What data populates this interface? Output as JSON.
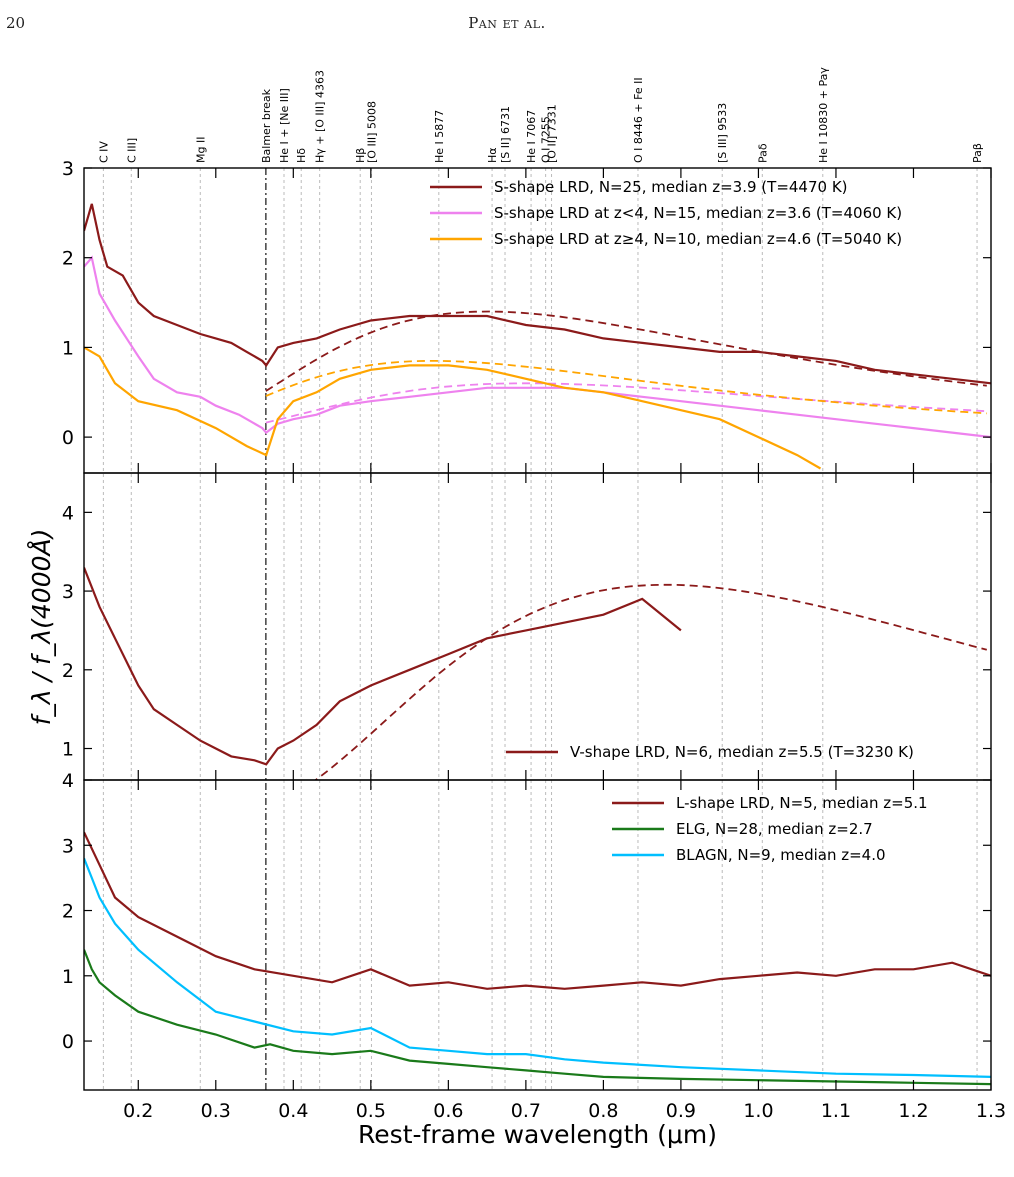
{
  "page": {
    "number": "20",
    "running_head": "Pan et al."
  },
  "chart_data": [
    {
      "type": "line",
      "panel": "S-shape",
      "ylim": [
        -0.4,
        3.0
      ],
      "yticks": [
        0,
        1,
        2,
        3
      ],
      "series": [
        {
          "name": "S-shape LRD, N=25, median z=3.9 (T=4470 K)",
          "color": "#8b1a1a",
          "points": [
            [
              0.13,
              2.3
            ],
            [
              0.14,
              2.6
            ],
            [
              0.15,
              2.2
            ],
            [
              0.16,
              1.9
            ],
            [
              0.18,
              1.8
            ],
            [
              0.2,
              1.5
            ],
            [
              0.22,
              1.35
            ],
            [
              0.25,
              1.25
            ],
            [
              0.28,
              1.15
            ],
            [
              0.3,
              1.1
            ],
            [
              0.32,
              1.05
            ],
            [
              0.34,
              0.95
            ],
            [
              0.36,
              0.85
            ],
            [
              0.365,
              0.8
            ],
            [
              0.38,
              1.0
            ],
            [
              0.4,
              1.05
            ],
            [
              0.43,
              1.1
            ],
            [
              0.46,
              1.2
            ],
            [
              0.5,
              1.3
            ],
            [
              0.55,
              1.35
            ],
            [
              0.6,
              1.35
            ],
            [
              0.65,
              1.35
            ],
            [
              0.7,
              1.25
            ],
            [
              0.75,
              1.2
            ],
            [
              0.8,
              1.1
            ],
            [
              0.85,
              1.05
            ],
            [
              0.9,
              1.0
            ],
            [
              0.95,
              0.95
            ],
            [
              1.0,
              0.95
            ],
            [
              1.05,
              0.9
            ],
            [
              1.1,
              0.85
            ],
            [
              1.15,
              0.75
            ],
            [
              1.2,
              0.7
            ],
            [
              1.25,
              0.65
            ],
            [
              1.3,
              0.6
            ]
          ],
          "fit": {
            "peak_um": 0.65,
            "peak_y": 1.4
          }
        },
        {
          "name": "S-shape LRD at z<4, N=15, median z=3.6 (T=4060 K)",
          "color": "#ee82ee",
          "points": [
            [
              0.13,
              1.9
            ],
            [
              0.14,
              2.0
            ],
            [
              0.15,
              1.6
            ],
            [
              0.17,
              1.3
            ],
            [
              0.2,
              0.9
            ],
            [
              0.22,
              0.65
            ],
            [
              0.25,
              0.5
            ],
            [
              0.28,
              0.45
            ],
            [
              0.3,
              0.35
            ],
            [
              0.33,
              0.25
            ],
            [
              0.36,
              0.1
            ],
            [
              0.365,
              0.05
            ],
            [
              0.38,
              0.15
            ],
            [
              0.4,
              0.2
            ],
            [
              0.43,
              0.25
            ],
            [
              0.46,
              0.35
            ],
            [
              0.5,
              0.4
            ],
            [
              0.55,
              0.45
            ],
            [
              0.6,
              0.5
            ],
            [
              0.65,
              0.55
            ],
            [
              0.7,
              0.55
            ],
            [
              0.75,
              0.55
            ],
            [
              0.8,
              0.5
            ],
            [
              0.85,
              0.45
            ],
            [
              0.9,
              0.4
            ],
            [
              0.95,
              0.35
            ],
            [
              1.0,
              0.3
            ],
            [
              1.05,
              0.25
            ],
            [
              1.1,
              0.2
            ],
            [
              1.15,
              0.15
            ],
            [
              1.2,
              0.1
            ],
            [
              1.25,
              0.05
            ],
            [
              1.3,
              0.0
            ]
          ],
          "fit": {
            "peak_um": 0.7,
            "peak_y": 0.6
          }
        },
        {
          "name": "S-shape LRD at z≥4, N=10, median z=4.6 (T=5040 K)",
          "color": "#ffa500",
          "points": [
            [
              0.13,
              1.0
            ],
            [
              0.15,
              0.9
            ],
            [
              0.17,
              0.6
            ],
            [
              0.2,
              0.4
            ],
            [
              0.25,
              0.3
            ],
            [
              0.3,
              0.1
            ],
            [
              0.34,
              -0.1
            ],
            [
              0.365,
              -0.2
            ],
            [
              0.38,
              0.2
            ],
            [
              0.4,
              0.4
            ],
            [
              0.43,
              0.5
            ],
            [
              0.46,
              0.65
            ],
            [
              0.5,
              0.75
            ],
            [
              0.55,
              0.8
            ],
            [
              0.6,
              0.8
            ],
            [
              0.65,
              0.75
            ],
            [
              0.7,
              0.65
            ],
            [
              0.75,
              0.55
            ],
            [
              0.8,
              0.5
            ],
            [
              0.85,
              0.4
            ],
            [
              0.9,
              0.3
            ],
            [
              0.95,
              0.2
            ],
            [
              1.0,
              0.0
            ],
            [
              1.05,
              -0.2
            ],
            [
              1.08,
              -0.35
            ]
          ],
          "fit": {
            "peak_um": 0.58,
            "peak_y": 0.85
          }
        }
      ]
    },
    {
      "type": "line",
      "panel": "V-shape",
      "ylim": [
        0.6,
        4.5
      ],
      "yticks": [
        1,
        2,
        3,
        4
      ],
      "series": [
        {
          "name": "V-shape LRD, N=6, median z=5.5 (T=3230 K)",
          "color": "#8b1a1a",
          "points": [
            [
              0.13,
              3.3
            ],
            [
              0.15,
              2.8
            ],
            [
              0.17,
              2.4
            ],
            [
              0.2,
              1.8
            ],
            [
              0.22,
              1.5
            ],
            [
              0.25,
              1.3
            ],
            [
              0.28,
              1.1
            ],
            [
              0.3,
              1.0
            ],
            [
              0.32,
              0.9
            ],
            [
              0.35,
              0.85
            ],
            [
              0.365,
              0.8
            ],
            [
              0.38,
              1.0
            ],
            [
              0.4,
              1.1
            ],
            [
              0.43,
              1.3
            ],
            [
              0.46,
              1.6
            ],
            [
              0.5,
              1.8
            ],
            [
              0.55,
              2.0
            ],
            [
              0.6,
              2.2
            ],
            [
              0.65,
              2.4
            ],
            [
              0.7,
              2.5
            ],
            [
              0.75,
              2.6
            ],
            [
              0.8,
              2.7
            ],
            [
              0.85,
              2.9
            ],
            [
              0.9,
              2.5
            ]
          ],
          "fit": {
            "peak_um": 0.88,
            "peak_y": 3.08
          }
        }
      ]
    },
    {
      "type": "line",
      "panel": "L-shape",
      "ylim": [
        -0.75,
        4.0
      ],
      "yticks": [
        0,
        1,
        2,
        3,
        4
      ],
      "series": [
        {
          "name": "L-shape LRD, N=5, median z=5.1",
          "color": "#8b1a1a",
          "points": [
            [
              0.13,
              3.2
            ],
            [
              0.15,
              2.7
            ],
            [
              0.17,
              2.2
            ],
            [
              0.2,
              1.9
            ],
            [
              0.25,
              1.6
            ],
            [
              0.3,
              1.3
            ],
            [
              0.35,
              1.1
            ],
            [
              0.4,
              1.0
            ],
            [
              0.45,
              0.9
            ],
            [
              0.5,
              1.1
            ],
            [
              0.55,
              0.85
            ],
            [
              0.6,
              0.9
            ],
            [
              0.65,
              0.8
            ],
            [
              0.7,
              0.85
            ],
            [
              0.75,
              0.8
            ],
            [
              0.8,
              0.85
            ],
            [
              0.85,
              0.9
            ],
            [
              0.9,
              0.85
            ],
            [
              0.95,
              0.95
            ],
            [
              1.0,
              1.0
            ],
            [
              1.05,
              1.05
            ],
            [
              1.1,
              1.0
            ],
            [
              1.15,
              1.1
            ],
            [
              1.2,
              1.1
            ],
            [
              1.25,
              1.2
            ],
            [
              1.3,
              1.0
            ]
          ]
        },
        {
          "name": "ELG, N=28, median z=2.7",
          "color": "#1a7a1a",
          "points": [
            [
              0.13,
              1.4
            ],
            [
              0.14,
              1.1
            ],
            [
              0.15,
              0.9
            ],
            [
              0.17,
              0.7
            ],
            [
              0.2,
              0.45
            ],
            [
              0.25,
              0.25
            ],
            [
              0.3,
              0.1
            ],
            [
              0.35,
              -0.1
            ],
            [
              0.37,
              -0.05
            ],
            [
              0.4,
              -0.15
            ],
            [
              0.45,
              -0.2
            ],
            [
              0.5,
              -0.15
            ],
            [
              0.55,
              -0.3
            ],
            [
              0.6,
              -0.35
            ],
            [
              0.65,
              -0.4
            ],
            [
              0.7,
              -0.45
            ],
            [
              0.75,
              -0.5
            ],
            [
              0.8,
              -0.55
            ],
            [
              0.9,
              -0.58
            ],
            [
              1.0,
              -0.6
            ],
            [
              1.1,
              -0.62
            ],
            [
              1.2,
              -0.64
            ],
            [
              1.3,
              -0.66
            ]
          ]
        },
        {
          "name": "BLAGN, N=9, median z=4.0",
          "color": "#00bfff",
          "points": [
            [
              0.13,
              2.8
            ],
            [
              0.14,
              2.5
            ],
            [
              0.15,
              2.2
            ],
            [
              0.17,
              1.8
            ],
            [
              0.2,
              1.4
            ],
            [
              0.25,
              0.9
            ],
            [
              0.3,
              0.45
            ],
            [
              0.35,
              0.3
            ],
            [
              0.4,
              0.15
            ],
            [
              0.45,
              0.1
            ],
            [
              0.5,
              0.2
            ],
            [
              0.55,
              -0.1
            ],
            [
              0.6,
              -0.15
            ],
            [
              0.65,
              -0.2
            ],
            [
              0.7,
              -0.2
            ],
            [
              0.75,
              -0.28
            ],
            [
              0.8,
              -0.33
            ],
            [
              0.9,
              -0.4
            ],
            [
              1.0,
              -0.45
            ],
            [
              1.1,
              -0.5
            ],
            [
              1.2,
              -0.52
            ],
            [
              1.3,
              -0.55
            ]
          ]
        }
      ]
    }
  ],
  "x_axis": {
    "label": "Rest-frame wavelength (μm)",
    "xlim": [
      0.13,
      1.3
    ],
    "ticks": [
      0.2,
      0.3,
      0.4,
      0.5,
      0.6,
      0.7,
      0.8,
      0.9,
      1.0,
      1.1,
      1.2,
      1.3
    ],
    "tick_labels": [
      "0.2",
      "0.3",
      "0.4",
      "0.5",
      "0.6",
      "0.7",
      "0.8",
      "0.9",
      "1.0",
      "1.1",
      "1.2",
      "1.3"
    ]
  },
  "y_axis": {
    "label": "f_λ / f_λ(4000Å)"
  },
  "spectral_lines": [
    {
      "label": "C IV",
      "um": 0.155
    },
    {
      "label": "C III]",
      "um": 0.191
    },
    {
      "label": "Mg II",
      "um": 0.28
    },
    {
      "label": "Balmer break",
      "um": 0.3646,
      "style": "dashdot"
    },
    {
      "label": "He I + [Ne III]",
      "um": 0.388
    },
    {
      "label": "Hδ",
      "um": 0.4102
    },
    {
      "label": "Hγ + [O III] 4363",
      "um": 0.434
    },
    {
      "label": "Hβ",
      "um": 0.4863
    },
    {
      "label": "[O III] 5008",
      "um": 0.5008
    },
    {
      "label": "He I 5877",
      "um": 0.5877
    },
    {
      "label": "Hα",
      "um": 0.6564
    },
    {
      "label": "[S II] 6731",
      "um": 0.6731
    },
    {
      "label": "He I 7067",
      "um": 0.7067
    },
    {
      "label": "O I 7255",
      "um": 0.7255
    },
    {
      "label": "[O II] 7331",
      "um": 0.7331
    },
    {
      "label": "O I 8446 + Fe II",
      "um": 0.8446
    },
    {
      "label": "[S III] 9533",
      "um": 0.9533
    },
    {
      "label": "Paδ",
      "um": 1.005
    },
    {
      "label": "He I 10830 + Paγ",
      "um": 1.083
    },
    {
      "label": "Paβ",
      "um": 1.282
    }
  ]
}
